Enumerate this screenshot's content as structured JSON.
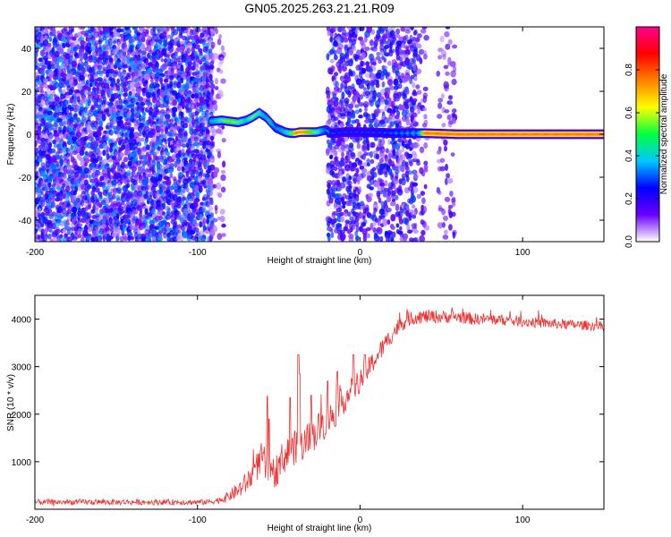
{
  "title": "GN05.2025.263.21.21.R09",
  "chart_data": [
    {
      "type": "heatmap",
      "xlabel": "Height of straight line (km)",
      "ylabel": "Frequency (Hz)",
      "xlim": [
        -200,
        150
      ],
      "ylim": [
        -50,
        50
      ],
      "xticks": [
        -200,
        -100,
        0,
        100
      ],
      "yticks": [
        -40,
        -20,
        0,
        20,
        40
      ],
      "colorbar": {
        "label": "Normalized spectral amplitude",
        "range": [
          0,
          1
        ],
        "ticks": [
          0.0,
          0.2,
          0.4,
          0.6,
          0.8
        ],
        "ticklabels": [
          "0.0",
          "0.2",
          "0.4",
          "0.6",
          "0.8"
        ],
        "colormap": [
          "#ffffff",
          "#6a00ff",
          "#0000ff",
          "#00c8ff",
          "#00ff40",
          "#ffff00",
          "#ff8000",
          "#ff0000",
          "#ff0090"
        ]
      },
      "noise_regions": [
        {
          "x": [
            -200,
            -92
          ],
          "density": 0.9,
          "amp": [
            0.05,
            0.35
          ]
        },
        {
          "x": [
            -92,
            -85
          ],
          "density": 0.25,
          "amp": [
            0.03,
            0.15
          ]
        },
        {
          "x": [
            -20,
            33
          ],
          "density": 0.6,
          "amp": [
            0.05,
            0.3
          ]
        },
        {
          "x": [
            33,
            40
          ],
          "density": 0.25,
          "amp": [
            0.05,
            0.2
          ]
        },
        {
          "x": [
            48,
            57
          ],
          "density": 0.25,
          "amp": [
            0.05,
            0.2
          ]
        }
      ],
      "ridge": {
        "x": [
          -92,
          -85,
          -80,
          -75,
          -70,
          -66,
          -62,
          -58,
          -55,
          -52,
          -49,
          -46,
          -43,
          -40,
          -37,
          -34,
          -30,
          -27,
          -24,
          -21,
          -18,
          -15,
          -10,
          -5,
          0,
          10,
          20,
          30,
          37,
          40,
          60,
          100,
          150
        ],
        "y": [
          6,
          6.5,
          6,
          5.5,
          6.5,
          8,
          10,
          8,
          5.5,
          3,
          2,
          1,
          0.5,
          0.5,
          1,
          1,
          1,
          1,
          1.5,
          2,
          0.5,
          0.5,
          1,
          1,
          1,
          0.8,
          0.5,
          0.5,
          0.5,
          0.5,
          0,
          0,
          0
        ],
        "amp": [
          0.45,
          0.55,
          0.7,
          0.6,
          0.5,
          0.6,
          0.55,
          0.45,
          0.5,
          0.4,
          0.45,
          0.5,
          0.55,
          0.85,
          0.9,
          0.85,
          0.75,
          0.6,
          0.5,
          0.4,
          0.35,
          0.3,
          0.3,
          0.3,
          0.3,
          0.3,
          0.35,
          0.4,
          0.45,
          0.95,
          0.95,
          0.95,
          0.95
        ]
      }
    },
    {
      "type": "line",
      "xlabel": "Height of straight line (km)",
      "ylabel": "SNR (10 * v/v)",
      "xlim": [
        -200,
        150
      ],
      "ylim": [
        0,
        4500
      ],
      "xticks": [
        -200,
        -100,
        0,
        100
      ],
      "yticks": [
        1000,
        2000,
        3000,
        4000
      ],
      "color": "#ee3333",
      "envelope": {
        "x": [
          -200,
          -95,
          -88,
          -82,
          -75,
          -70,
          -65,
          -60,
          -56,
          -52,
          -48,
          -44,
          -40,
          -36,
          -32,
          -28,
          -24,
          -20,
          -15,
          -10,
          -5,
          0,
          5,
          10,
          15,
          20,
          25,
          30,
          35,
          40,
          50,
          60,
          70,
          80,
          100,
          120,
          150
        ],
        "y": [
          150,
          150,
          180,
          250,
          400,
          550,
          800,
          1100,
          650,
          800,
          1050,
          1200,
          1300,
          1350,
          1450,
          1600,
          1750,
          1850,
          2050,
          2300,
          2500,
          2700,
          2950,
          3200,
          3450,
          3700,
          3900,
          4000,
          4050,
          4050,
          4050,
          4050,
          4000,
          4000,
          3950,
          3900,
          3850
        ]
      },
      "noise_amplitude": {
        "x": [
          -200,
          -90,
          -80,
          -60,
          -45,
          -30,
          -10,
          10,
          30,
          50,
          80,
          150
        ],
        "y": [
          60,
          60,
          120,
          350,
          350,
          380,
          300,
          220,
          160,
          140,
          120,
          100
        ]
      },
      "spikes": [
        {
          "x": -57,
          "y": 2380
        },
        {
          "x": -56,
          "y": 1900
        },
        {
          "x": -38,
          "y": 3250
        },
        {
          "x": -37,
          "y": 2850
        },
        {
          "x": -43,
          "y": 2350
        },
        {
          "x": -30,
          "y": 2400
        },
        {
          "x": -20,
          "y": 2700
        },
        {
          "x": -14,
          "y": 2900
        },
        {
          "x": -4,
          "y": 3250
        },
        {
          "x": 3,
          "y": 3250
        },
        {
          "x": 12,
          "y": 3300
        }
      ]
    }
  ]
}
